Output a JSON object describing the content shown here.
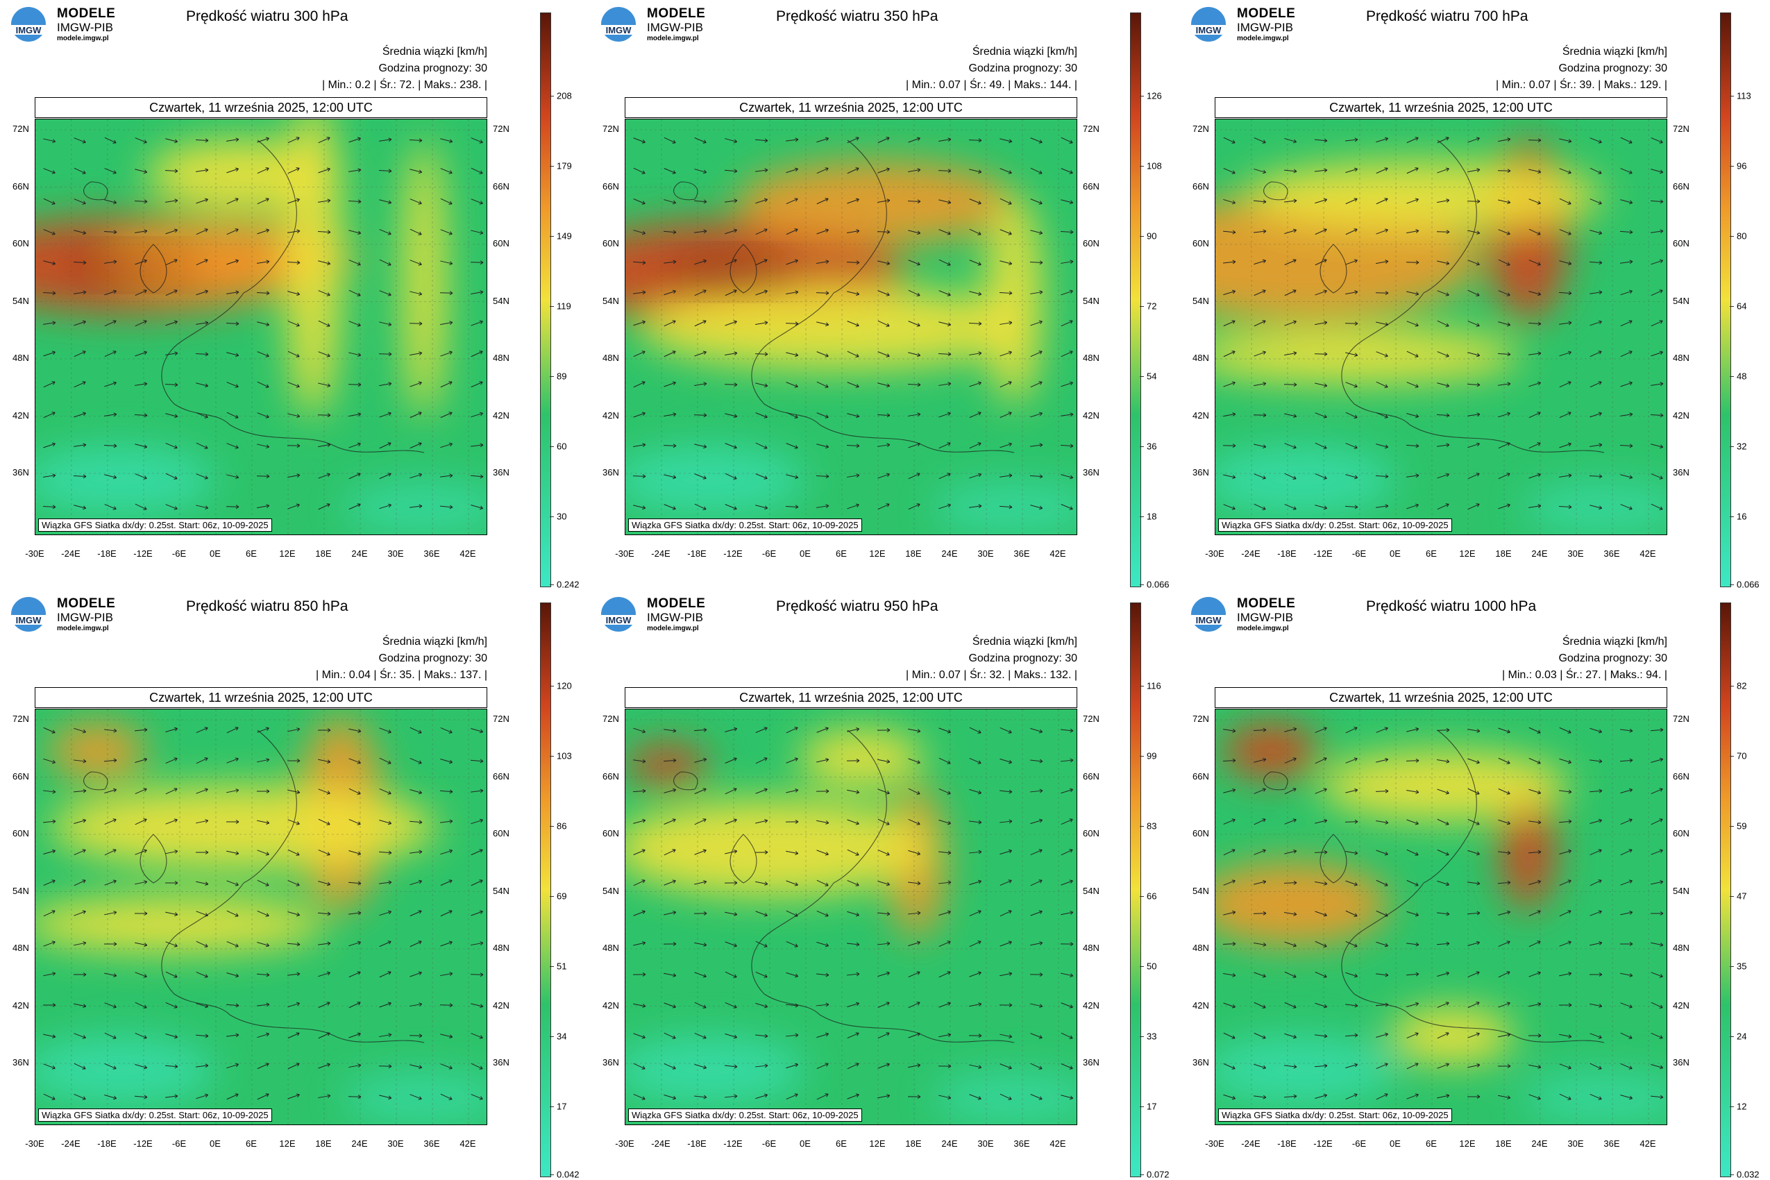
{
  "brand": {
    "line1": "MODELE",
    "line2": "IMGW-PIB",
    "url": "modele.imgw.pl",
    "logo_text": "IMGW"
  },
  "common": {
    "subtitle1": "Średnia wiązki [km/h]",
    "subtitle2": "Godzina prognozy: 30",
    "date": "Czwartek, 11 września 2025, 12:00 UTC",
    "stamp": "Wiązka GFS Siatka dx/dy: 0.25st. Start: 06z, 10-09-2025",
    "lat_labels": [
      "72N",
      "66N",
      "60N",
      "54N",
      "48N",
      "42N",
      "36N"
    ],
    "lon_labels": [
      "-30E",
      "-24E",
      "-18E",
      "-12E",
      "-6E",
      "0E",
      "6E",
      "12E",
      "18E",
      "24E",
      "30E",
      "36E",
      "42E"
    ]
  },
  "colors": {
    "low": "#3de8c4",
    "mid": "#2ec36a",
    "yellow": "#f2e23a",
    "orange": "#ef9a2a",
    "red": "#d2451e",
    "dark": "#5a1608"
  },
  "panels": [
    {
      "title": "Prędkość wiatru 300 hPa",
      "stats": "| Min.: 0.2 | Śr.: 72. | Maks.: 238. |",
      "colorbar": [
        "208",
        "179",
        "149",
        "119",
        "89",
        "60",
        "30",
        "0.242"
      ]
    },
    {
      "title": "Prędkość wiatru 350 hPa",
      "stats": "| Min.: 0.07 | Śr.: 49. | Maks.: 144. |",
      "colorbar": [
        "126",
        "108",
        "90",
        "72",
        "54",
        "36",
        "18",
        "0.066"
      ]
    },
    {
      "title": "Prędkość wiatru 700 hPa",
      "stats": "| Min.: 0.07 | Śr.: 39. | Maks.: 129. |",
      "colorbar": [
        "113",
        "96",
        "80",
        "64",
        "48",
        "32",
        "16",
        "0.066"
      ]
    },
    {
      "title": "Prędkość wiatru 850 hPa",
      "stats": "| Min.: 0.04 | Śr.: 35. | Maks.: 137. |",
      "colorbar": [
        "120",
        "103",
        "86",
        "69",
        "51",
        "34",
        "17",
        "0.042"
      ]
    },
    {
      "title": "Prędkość wiatru 950 hPa",
      "stats": "| Min.: 0.07 | Śr.: 32. | Maks.: 132. |",
      "colorbar": [
        "116",
        "99",
        "83",
        "66",
        "50",
        "33",
        "17",
        "0.072"
      ]
    },
    {
      "title": "Prędkość wiatru 1000 hPa",
      "stats": "| Min.: 0.03 | Śr.: 27. | Maks.: 94. |",
      "colorbar": [
        "82",
        "70",
        "59",
        "47",
        "35",
        "24",
        "12",
        "0.032"
      ]
    }
  ]
}
